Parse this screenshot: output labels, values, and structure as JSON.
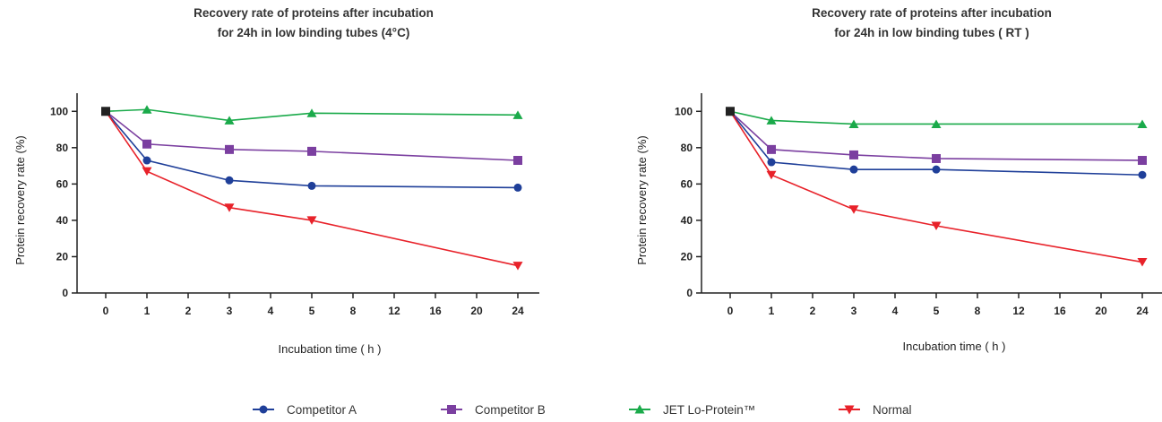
{
  "chart_data": [
    {
      "type": "line",
      "title": "Recovery rate of proteins after incubation\nfor 24h in low binding tubes (4°C)",
      "xlabel": "Incubation time ( h )",
      "ylabel": "Protein recovery rate (%)",
      "categories": [
        "0",
        "1",
        "2",
        "3",
        "4",
        "5",
        "8",
        "12",
        "16",
        "20",
        "24"
      ],
      "ylim": [
        0,
        110
      ],
      "yticks": [
        0,
        20,
        40,
        60,
        80,
        100
      ],
      "series": [
        {
          "name": "Competitor A",
          "x": [
            "0",
            "1",
            "3",
            "5",
            "24"
          ],
          "values": [
            100,
            73,
            62,
            59,
            58
          ]
        },
        {
          "name": "Competitor B",
          "x": [
            "0",
            "1",
            "3",
            "5",
            "24"
          ],
          "values": [
            100,
            82,
            79,
            78,
            73
          ]
        },
        {
          "name": "JET Lo-Protein™",
          "x": [
            "0",
            "1",
            "3",
            "5",
            "24"
          ],
          "values": [
            100,
            101,
            95,
            99,
            98
          ]
        },
        {
          "name": "Normal",
          "x": [
            "0",
            "1",
            "3",
            "5",
            "24"
          ],
          "values": [
            100,
            67,
            47,
            40,
            15
          ]
        }
      ]
    },
    {
      "type": "line",
      "title": "Recovery rate of proteins after incubation\nfor 24h in low binding tubes ( RT )",
      "xlabel": "Incubation time ( h )",
      "ylabel": "Protein recovery rate (%)",
      "categories": [
        "0",
        "1",
        "2",
        "3",
        "4",
        "5",
        "8",
        "12",
        "16",
        "20",
        "24"
      ],
      "ylim": [
        0,
        110
      ],
      "yticks": [
        0,
        20,
        40,
        60,
        80,
        100
      ],
      "series": [
        {
          "name": "Competitor A",
          "x": [
            "0",
            "1",
            "3",
            "5",
            "24"
          ],
          "values": [
            100,
            72,
            68,
            68,
            65
          ]
        },
        {
          "name": "Competitor B",
          "x": [
            "0",
            "1",
            "3",
            "5",
            "24"
          ],
          "values": [
            100,
            79,
            76,
            74,
            73
          ]
        },
        {
          "name": "JET Lo-Protein™",
          "x": [
            "0",
            "1",
            "3",
            "5",
            "24"
          ],
          "values": [
            100,
            95,
            93,
            93,
            93
          ]
        },
        {
          "name": "Normal",
          "x": [
            "0",
            "1",
            "3",
            "5",
            "24"
          ],
          "values": [
            100,
            65,
            46,
            37,
            17
          ]
        }
      ]
    }
  ],
  "legend": {
    "items": [
      {
        "label": "Competitor A",
        "color": "#1f3f99",
        "marker": "circle"
      },
      {
        "label": "Competitor B",
        "color": "#7b3fa0",
        "marker": "square"
      },
      {
        "label": "JET Lo-Protein™",
        "color": "#1aaa4a",
        "marker": "triangle-up"
      },
      {
        "label": "Normal",
        "color": "#e8222a",
        "marker": "triangle-down"
      }
    ]
  },
  "origin_marker_color": "#222222"
}
